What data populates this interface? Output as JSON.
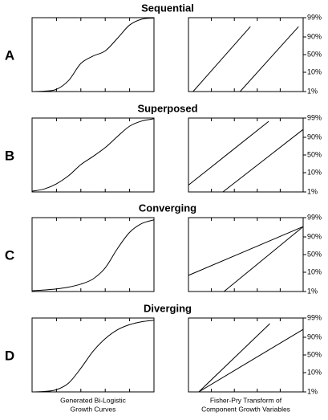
{
  "rows": [
    {
      "letter": "A",
      "title": "Sequential"
    },
    {
      "letter": "B",
      "title": "Superposed"
    },
    {
      "letter": "C",
      "title": "Converging"
    },
    {
      "letter": "D",
      "title": "Diverging"
    }
  ],
  "captions": [
    [
      "Generated Bi-Logistic",
      "Growth Curves"
    ],
    [
      "Fisher-Pry Transform of",
      "Component Growth Variables"
    ]
  ],
  "chart_data": [
    {
      "type": "line",
      "x": [
        0,
        1,
        2,
        3,
        4,
        5,
        6,
        7,
        8,
        9,
        10
      ],
      "values": [
        0,
        0.5,
        3,
        15,
        38,
        48,
        55,
        72,
        90,
        98,
        99.5
      ],
      "xlim": [
        0,
        10
      ],
      "ylim": [
        0,
        100
      ],
      "xticks": [
        0,
        2,
        4,
        6,
        8,
        10
      ],
      "color": "#000000"
    },
    {
      "type": "line",
      "yscale": "logit",
      "xlim": [
        0,
        10
      ],
      "ylim": [
        1,
        99
      ],
      "xticks": [
        0,
        2,
        4,
        6,
        8,
        10
      ],
      "yticks": [
        {
          "value": 1,
          "label": "1%"
        },
        {
          "value": 10,
          "label": "10%"
        },
        {
          "value": 50,
          "label": "50%"
        },
        {
          "value": 90,
          "label": "90%"
        },
        {
          "value": 99,
          "label": "99%"
        }
      ],
      "series": [
        {
          "color": "#000000",
          "x": [
            0.4,
            5.4
          ],
          "values": [
            1,
            97
          ]
        },
        {
          "color": "#000000",
          "x": [
            4.5,
            9.6
          ],
          "values": [
            1,
            97
          ]
        }
      ]
    },
    {
      "type": "line",
      "x": [
        0,
        1,
        2,
        3,
        4,
        5,
        6,
        7,
        8,
        9,
        10
      ],
      "values": [
        1,
        4,
        11,
        22,
        37,
        48,
        60,
        75,
        89,
        96,
        99
      ],
      "xlim": [
        0,
        10
      ],
      "ylim": [
        0,
        100
      ],
      "xticks": [
        0,
        2,
        4,
        6,
        8,
        10
      ],
      "color": "#000000"
    },
    {
      "type": "line",
      "yscale": "logit",
      "xlim": [
        0,
        10
      ],
      "ylim": [
        1,
        99
      ],
      "xticks": [
        0,
        2,
        4,
        6,
        8,
        10
      ],
      "yticks": [
        {
          "value": 1,
          "label": "1%"
        },
        {
          "value": 10,
          "label": "10%"
        },
        {
          "value": 50,
          "label": "50%"
        },
        {
          "value": 90,
          "label": "90%"
        },
        {
          "value": 99,
          "label": "99%"
        }
      ],
      "series": [
        {
          "color": "#000000",
          "x": [
            0,
            7.0
          ],
          "values": [
            2.3,
            98.5
          ]
        },
        {
          "color": "#000000",
          "x": [
            3.0,
            10
          ],
          "values": [
            1,
            96
          ]
        }
      ]
    },
    {
      "type": "line",
      "x": [
        0,
        1,
        2,
        3,
        4,
        5,
        6,
        7,
        8,
        9,
        10
      ],
      "values": [
        1,
        2,
        3.5,
        6,
        10,
        17,
        32,
        58,
        80,
        92,
        97
      ],
      "xlim": [
        0,
        10
      ],
      "ylim": [
        0,
        100
      ],
      "xticks": [
        0,
        2,
        4,
        6,
        8,
        10
      ],
      "color": "#000000"
    },
    {
      "type": "line",
      "yscale": "logit",
      "xlim": [
        0,
        10
      ],
      "ylim": [
        1,
        99
      ],
      "xticks": [
        0,
        2,
        4,
        6,
        8,
        10
      ],
      "yticks": [
        {
          "value": 1,
          "label": "1%"
        },
        {
          "value": 10,
          "label": "10%"
        },
        {
          "value": 50,
          "label": "50%"
        },
        {
          "value": 90,
          "label": "90%"
        },
        {
          "value": 99,
          "label": "99%"
        }
      ],
      "series": [
        {
          "color": "#000000",
          "x": [
            0,
            10
          ],
          "values": [
            7,
            97
          ]
        },
        {
          "color": "#000000",
          "x": [
            3.1,
            10
          ],
          "values": [
            1,
            97
          ]
        }
      ]
    },
    {
      "type": "line",
      "x": [
        0,
        1,
        2,
        3,
        4,
        5,
        6,
        7,
        8,
        9,
        10
      ],
      "values": [
        0,
        0.5,
        3,
        12,
        32,
        55,
        72,
        84,
        91,
        95,
        97
      ],
      "xlim": [
        0,
        10
      ],
      "ylim": [
        0,
        100
      ],
      "xticks": [
        0,
        2,
        4,
        6,
        8,
        10
      ],
      "color": "#000000"
    },
    {
      "type": "line",
      "yscale": "logit",
      "xlim": [
        0,
        10
      ],
      "ylim": [
        1,
        99
      ],
      "xticks": [
        0,
        2,
        4,
        6,
        8,
        10
      ],
      "yticks": [
        {
          "value": 1,
          "label": "1%"
        },
        {
          "value": 10,
          "label": "10%"
        },
        {
          "value": 50,
          "label": "50%"
        },
        {
          "value": 90,
          "label": "90%"
        },
        {
          "value": 99,
          "label": "99%"
        }
      ],
      "series": [
        {
          "color": "#000000",
          "x": [
            0.9,
            7.1
          ],
          "values": [
            1,
            98
          ]
        },
        {
          "color": "#000000",
          "x": [
            0.9,
            10
          ],
          "values": [
            1,
            96
          ]
        }
      ]
    }
  ]
}
